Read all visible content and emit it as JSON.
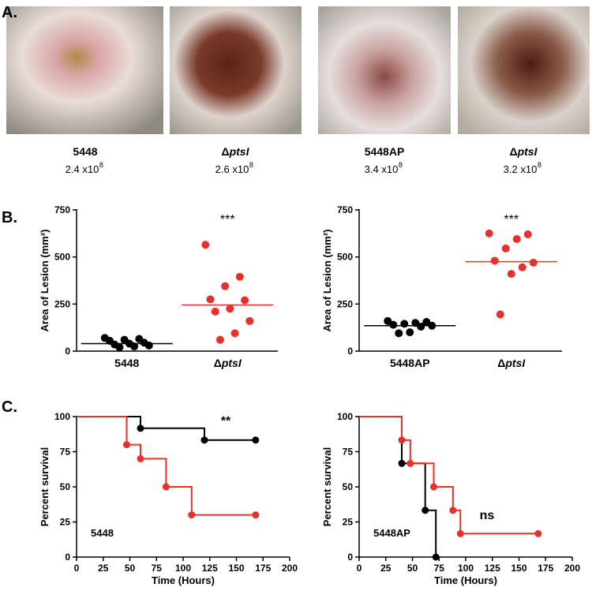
{
  "panels": [
    "A.",
    "B.",
    "C."
  ],
  "photos": [
    {
      "label": "5448",
      "count": "2.4 x10",
      "exponent": "8"
    },
    {
      "label": "ΔptsI",
      "count": "2.6 x10",
      "exponent": "8"
    },
    {
      "label": "5448AP",
      "count": "3.4 x10",
      "exponent": "8"
    },
    {
      "label": "ΔptsI",
      "count": "3.2 x10",
      "exponent": "8"
    }
  ],
  "chart_data": [
    {
      "type": "dot",
      "y_label": "Area of Lesion (mm²)",
      "annotation": "***",
      "ylim": [
        0,
        750
      ],
      "yticks": [
        0,
        250,
        500,
        750
      ],
      "series": [
        {
          "name": "5448",
          "color": "#000000",
          "values": [
            70,
            65,
            60,
            55,
            45,
            40,
            35,
            30,
            25,
            20
          ],
          "mean": 40
        },
        {
          "name": "ΔptsI",
          "color": "#e8302a",
          "values": [
            565,
            395,
            345,
            275,
            270,
            225,
            210,
            160,
            95,
            60
          ],
          "mean": 245
        }
      ]
    },
    {
      "type": "dot",
      "y_label": "Area of Lesion (mm²)",
      "annotation": "***",
      "ylim": [
        0,
        750
      ],
      "yticks": [
        0,
        250,
        500,
        750
      ],
      "series": [
        {
          "name": "5448AP",
          "color": "#000000",
          "values": [
            160,
            155,
            150,
            145,
            140,
            135,
            130,
            100,
            95
          ],
          "mean": 135
        },
        {
          "name": "ΔptsI",
          "color": "#e8302a",
          "values": [
            625,
            620,
            595,
            545,
            480,
            470,
            445,
            410,
            195
          ],
          "mean": 475
        }
      ]
    },
    {
      "type": "step",
      "x_label": "Time (Hours)",
      "y_label": "Percent survival",
      "label": "5448",
      "annotation": "**",
      "xlim": [
        0,
        200
      ],
      "xticks": [
        0,
        25,
        50,
        75,
        100,
        125,
        150,
        175,
        200
      ],
      "ylim": [
        0,
        100
      ],
      "yticks": [
        0,
        25,
        50,
        75,
        100
      ],
      "series": [
        {
          "color": "#000000",
          "x": [
            0,
            60,
            120,
            168
          ],
          "values": [
            100,
            91.7,
            83.3,
            83.3
          ]
        },
        {
          "color": "#e8302a",
          "x": [
            0,
            47,
            60,
            84,
            108,
            168
          ],
          "values": [
            100,
            80,
            70,
            50,
            30,
            30
          ]
        }
      ]
    },
    {
      "type": "step",
      "x_label": "Time (Hours)",
      "y_label": "Percent survival",
      "label": "5448AP",
      "annotation": "ns",
      "xlim": [
        0,
        200
      ],
      "xticks": [
        0,
        25,
        50,
        75,
        100,
        125,
        150,
        175,
        200
      ],
      "ylim": [
        0,
        100
      ],
      "yticks": [
        0,
        25,
        50,
        75,
        100
      ],
      "series": [
        {
          "color": "#000000",
          "x": [
            0,
            40,
            62,
            72
          ],
          "values": [
            100,
            66.7,
            33.3,
            0
          ]
        },
        {
          "color": "#e8302a",
          "x": [
            0,
            40,
            48,
            70,
            88,
            95,
            168
          ],
          "values": [
            100,
            83.3,
            66.7,
            50,
            33.3,
            16.7,
            16.7
          ]
        }
      ]
    }
  ]
}
